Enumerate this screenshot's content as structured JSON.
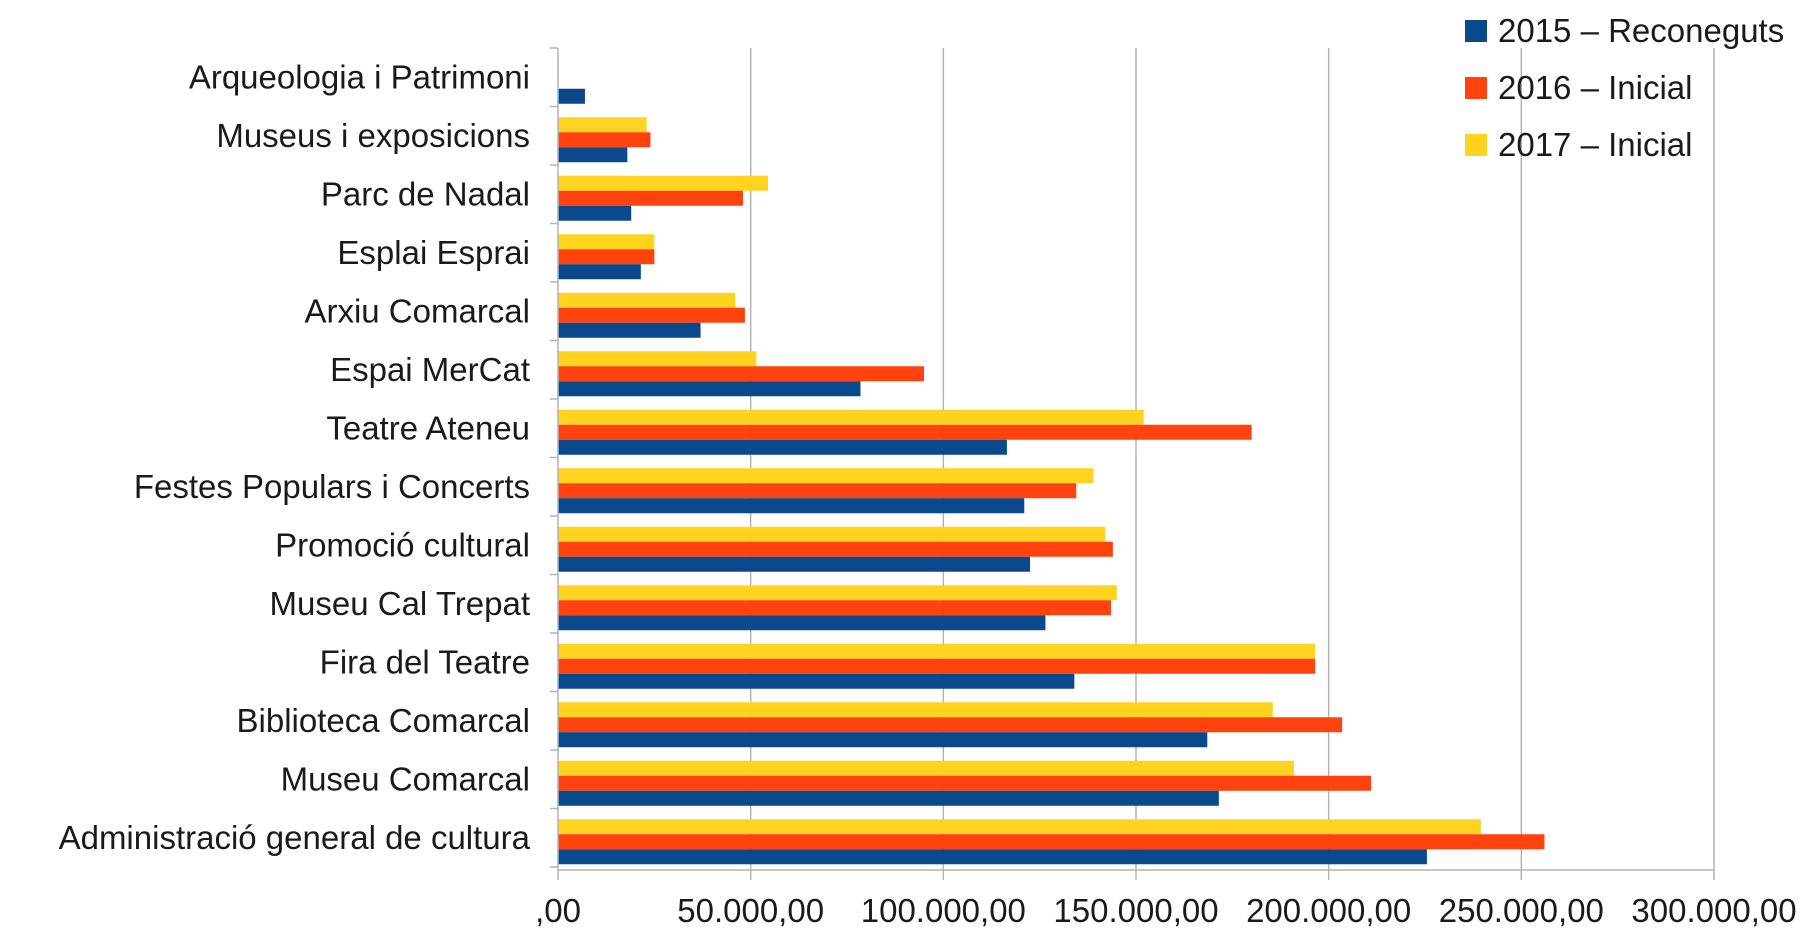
{
  "chart_data": {
    "type": "bar",
    "orientation": "horizontal",
    "title": "",
    "xlabel": "",
    "ylabel": "",
    "xlim": [
      0,
      300000
    ],
    "x_ticks": [
      0,
      50000,
      100000,
      150000,
      200000,
      250000,
      300000
    ],
    "x_tick_labels": [
      ",00",
      "50.000,00",
      "100.000,00",
      "150.000,00",
      "200.000,00",
      "250.000,00",
      "300.000,00"
    ],
    "grid": "vertical",
    "legend_position": "top-right",
    "categories": [
      "Arqueologia i Patrimoni",
      "Museus i exposicions",
      "Parc de Nadal",
      "Esplai Esprai",
      "Arxiu Comarcal",
      "Espai MerCat",
      "Teatre Ateneu",
      "Festes Populars i Concerts",
      "Promoció cultural",
      "Museu Cal Trepat",
      "Fira del Teatre",
      "Biblioteca Comarcal",
      "Museu Comarcal",
      "Administració general de cultura"
    ],
    "series": [
      {
        "name": "2015 – Reconeguts",
        "color": "#0a4a8c",
        "values": [
          7000,
          18000,
          19000,
          21500,
          37000,
          78500,
          116500,
          121000,
          122500,
          126500,
          134000,
          168500,
          171500,
          225500
        ]
      },
      {
        "name": "2016 – Inicial",
        "color": "#ff420e",
        "values": [
          0,
          24000,
          48000,
          25000,
          48500,
          95000,
          180000,
          134500,
          144000,
          143500,
          196500,
          203500,
          211000,
          256000
        ]
      },
      {
        "name": "2017 – Inicial",
        "color": "#ffd320",
        "values": [
          0,
          23000,
          54500,
          25000,
          46000,
          51500,
          152000,
          139000,
          142000,
          145000,
          196500,
          185500,
          191000,
          239500
        ]
      }
    ]
  }
}
